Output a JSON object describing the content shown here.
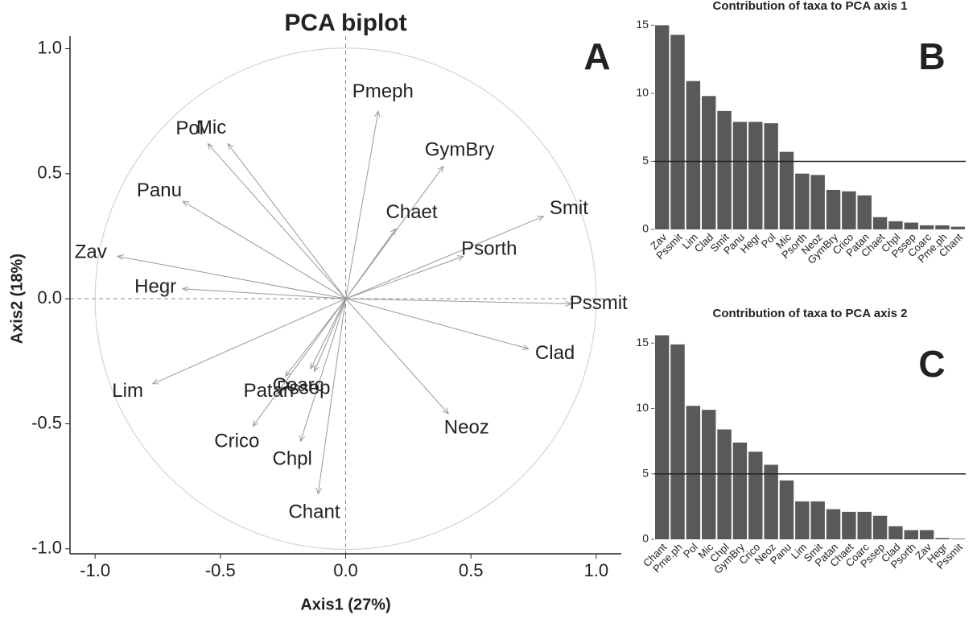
{
  "chart_data": [
    {
      "type": "biplot",
      "title": "PCA biplot",
      "panel_label": "A",
      "x_label": "Axis1 (27%)",
      "y_label": "Axis2 (18%)",
      "xlim": [
        -1.1,
        1.1
      ],
      "ylim": [
        -1.02,
        1.05
      ],
      "xticks": [
        {
          "value": -1,
          "label": "-1.0"
        },
        {
          "value": -0.5,
          "label": "-0.5"
        },
        {
          "value": 0,
          "label": "0.0"
        },
        {
          "value": 0.5,
          "label": "0.5"
        },
        {
          "value": 1,
          "label": "1.0"
        }
      ],
      "yticks": [
        {
          "value": -1,
          "label": "-1.0"
        },
        {
          "value": -0.5,
          "label": "-0.5"
        },
        {
          "value": 0,
          "label": "0.0"
        },
        {
          "value": 0.5,
          "label": "0.5"
        },
        {
          "value": 1,
          "label": "1.0"
        }
      ],
      "color": "#999999",
      "labels": [
        "Pmeph",
        "GymBry",
        "Smit",
        "Chaet",
        "Psorth",
        "Pssmit",
        "Clad",
        "Neoz",
        "Chant",
        "Chpl",
        "Coarc",
        "Pssep",
        "Patan",
        "Crico",
        "Lim",
        "Hegr",
        "Zav",
        "Panu",
        "Pol",
        "Mic"
      ],
      "x": [
        0.13,
        0.39,
        0.79,
        0.2,
        0.47,
        0.9,
        0.73,
        0.41,
        -0.11,
        -0.18,
        -0.14,
        -0.125,
        -0.24,
        -0.37,
        -0.77,
        -0.65,
        -0.91,
        -0.65,
        -0.55,
        -0.47
      ],
      "y": [
        0.75,
        0.53,
        0.33,
        0.28,
        0.17,
        -0.02,
        -0.2,
        -0.46,
        -0.78,
        -0.57,
        -0.28,
        -0.29,
        -0.31,
        -0.51,
        -0.34,
        0.04,
        0.17,
        0.39,
        0.62,
        0.62
      ]
    },
    {
      "type": "bar",
      "title": "Contribution of taxa to PCA axis 1",
      "panel_label": "B",
      "color": "#595959",
      "categories": [
        "Zav",
        "Pssmit",
        "Lim",
        "Clad",
        "Smit",
        "Panu",
        "Hegr",
        "Pol",
        "Mic",
        "Psorth",
        "Neoz",
        "GymBry",
        "Crico",
        "Patan",
        "Chaet",
        "Chpl",
        "Pssep",
        "Coarc",
        "Pme.ph",
        "Chant"
      ],
      "values": [
        15.0,
        14.3,
        10.9,
        9.8,
        8.7,
        7.9,
        7.9,
        7.8,
        5.7,
        4.1,
        4.0,
        2.9,
        2.8,
        2.5,
        0.9,
        0.6,
        0.5,
        0.3,
        0.3,
        0.2
      ],
      "reference_line": 5,
      "ylim": [
        0,
        15.2
      ],
      "yticks": [
        0,
        5,
        10,
        15
      ]
    },
    {
      "type": "bar",
      "title": "Contribution of taxa to PCA axis 2",
      "panel_label": "C",
      "color": "#595959",
      "categories": [
        "Chant",
        "Pme.ph",
        "Pol",
        "Mic",
        "Chpl",
        "GymBry",
        "Crico",
        "Neoz",
        "Panu",
        "Lim",
        "Smit",
        "Patan",
        "Chaet",
        "Coarc",
        "Pssep",
        "Clad",
        "Psorth",
        "Zav",
        "Hegr",
        "Pssmit"
      ],
      "values": [
        15.6,
        14.9,
        10.2,
        9.9,
        8.4,
        7.4,
        6.7,
        5.7,
        4.5,
        2.9,
        2.9,
        2.3,
        2.1,
        2.1,
        1.8,
        1.0,
        0.7,
        0.7,
        0.1,
        0.05
      ],
      "reference_line": 5,
      "ylim": [
        0,
        16
      ],
      "yticks": [
        0,
        5,
        10,
        15
      ]
    }
  ]
}
